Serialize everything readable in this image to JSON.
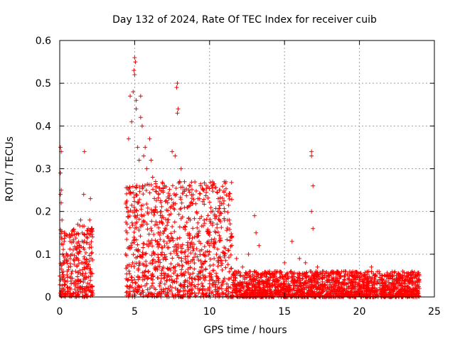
{
  "chart_data": {
    "type": "scatter",
    "title": "Day 132 of 2024, Rate Of TEC Index for receiver cuib",
    "xlabel": "GPS time / hours",
    "ylabel": "ROTI / TECUs",
    "xlim": [
      0,
      25
    ],
    "ylim": [
      0,
      0.6
    ],
    "xticks": [
      0,
      5,
      10,
      15,
      20,
      25
    ],
    "yticks": [
      0,
      0.1,
      0.2,
      0.3,
      0.4,
      0.5,
      0.6
    ],
    "ytick_labels": [
      "0",
      "0.1",
      "0.2",
      "0.3",
      "0.4",
      "0.5",
      "0.6"
    ],
    "grid": true,
    "marker": "+",
    "color": "#ff0000",
    "series": [
      {
        "name": "ROTI",
        "points": [
          [
            0.05,
            0.35
          ],
          [
            0.1,
            0.34
          ],
          [
            0.05,
            0.29
          ],
          [
            0.1,
            0.25
          ],
          [
            0.05,
            0.24
          ],
          [
            0.1,
            0.22
          ],
          [
            0.15,
            0.18
          ],
          [
            0.1,
            0.14
          ],
          [
            0.2,
            0.1
          ],
          [
            0.3,
            0.08
          ],
          [
            0.5,
            0.06
          ],
          [
            0.7,
            0.09
          ],
          [
            0.9,
            0.11
          ],
          [
            1.1,
            0.09
          ],
          [
            1.3,
            0.12
          ],
          [
            1.5,
            0.13
          ],
          [
            1.6,
            0.24
          ],
          [
            1.65,
            0.34
          ],
          [
            1.8,
            0.14
          ],
          [
            1.9,
            0.16
          ],
          [
            2.0,
            0.18
          ],
          [
            2.05,
            0.23
          ],
          [
            1.2,
            0.17
          ],
          [
            1.4,
            0.18
          ],
          [
            4.4,
            0.1
          ],
          [
            4.5,
            0.15
          ],
          [
            4.6,
            0.25
          ],
          [
            4.6,
            0.37
          ],
          [
            4.7,
            0.47
          ],
          [
            4.8,
            0.41
          ],
          [
            4.9,
            0.48
          ],
          [
            4.95,
            0.53
          ],
          [
            5.0,
            0.56
          ],
          [
            5.0,
            0.52
          ],
          [
            5.05,
            0.55
          ],
          [
            5.1,
            0.46
          ],
          [
            5.1,
            0.44
          ],
          [
            5.2,
            0.35
          ],
          [
            5.3,
            0.32
          ],
          [
            5.4,
            0.47
          ],
          [
            5.4,
            0.42
          ],
          [
            5.5,
            0.4
          ],
          [
            5.6,
            0.33
          ],
          [
            5.7,
            0.35
          ],
          [
            5.8,
            0.3
          ],
          [
            6.0,
            0.37
          ],
          [
            6.1,
            0.32
          ],
          [
            6.2,
            0.28
          ],
          [
            6.4,
            0.27
          ],
          [
            6.6,
            0.24
          ],
          [
            7.0,
            0.26
          ],
          [
            7.2,
            0.22
          ],
          [
            7.5,
            0.34
          ],
          [
            7.7,
            0.33
          ],
          [
            7.8,
            0.49
          ],
          [
            7.85,
            0.5
          ],
          [
            7.9,
            0.44
          ],
          [
            7.85,
            0.43
          ],
          [
            8.0,
            0.27
          ],
          [
            8.1,
            0.3
          ],
          [
            8.3,
            0.25
          ],
          [
            8.5,
            0.21
          ],
          [
            8.7,
            0.18
          ],
          [
            9.0,
            0.14
          ],
          [
            9.3,
            0.13
          ],
          [
            9.6,
            0.1
          ],
          [
            10.0,
            0.12
          ],
          [
            10.3,
            0.09
          ],
          [
            10.6,
            0.08
          ],
          [
            11.0,
            0.2
          ],
          [
            11.2,
            0.18
          ],
          [
            11.4,
            0.14
          ],
          [
            11.8,
            0.09
          ],
          [
            12.2,
            0.07
          ],
          [
            12.6,
            0.1
          ],
          [
            13.0,
            0.19
          ],
          [
            13.1,
            0.15
          ],
          [
            13.3,
            0.12
          ],
          [
            13.5,
            0.05
          ],
          [
            14.0,
            0.06
          ],
          [
            14.5,
            0.04
          ],
          [
            15.0,
            0.08
          ],
          [
            15.5,
            0.13
          ],
          [
            16.0,
            0.09
          ],
          [
            16.4,
            0.08
          ],
          [
            16.8,
            0.34
          ],
          [
            16.8,
            0.33
          ],
          [
            16.9,
            0.26
          ],
          [
            16.8,
            0.2
          ],
          [
            16.9,
            0.16
          ],
          [
            17.2,
            0.07
          ],
          [
            17.6,
            0.06
          ],
          [
            18.0,
            0.05
          ],
          [
            18.5,
            0.06
          ],
          [
            19.0,
            0.05
          ],
          [
            19.5,
            0.05
          ],
          [
            20.0,
            0.04
          ],
          [
            20.5,
            0.03
          ],
          [
            20.8,
            0.07
          ],
          [
            21.0,
            0.05
          ],
          [
            21.5,
            0.04
          ],
          [
            22.0,
            0.03
          ],
          [
            22.5,
            0.04
          ],
          [
            23.0,
            0.05
          ],
          [
            23.5,
            0.03
          ],
          [
            24.0,
            0.02
          ],
          [
            24.0,
            0.04
          ]
        ],
        "dense_bands": [
          {
            "x_range": [
              0.0,
              2.2
            ],
            "y_range": [
              0.0,
              0.17
            ]
          },
          {
            "x_range": [
              4.4,
              11.5
            ],
            "y_range": [
              0.0,
              0.27
            ]
          },
          {
            "x_range": [
              11.5,
              24.0
            ],
            "y_range": [
              0.0,
              0.06
            ]
          }
        ]
      }
    ]
  }
}
